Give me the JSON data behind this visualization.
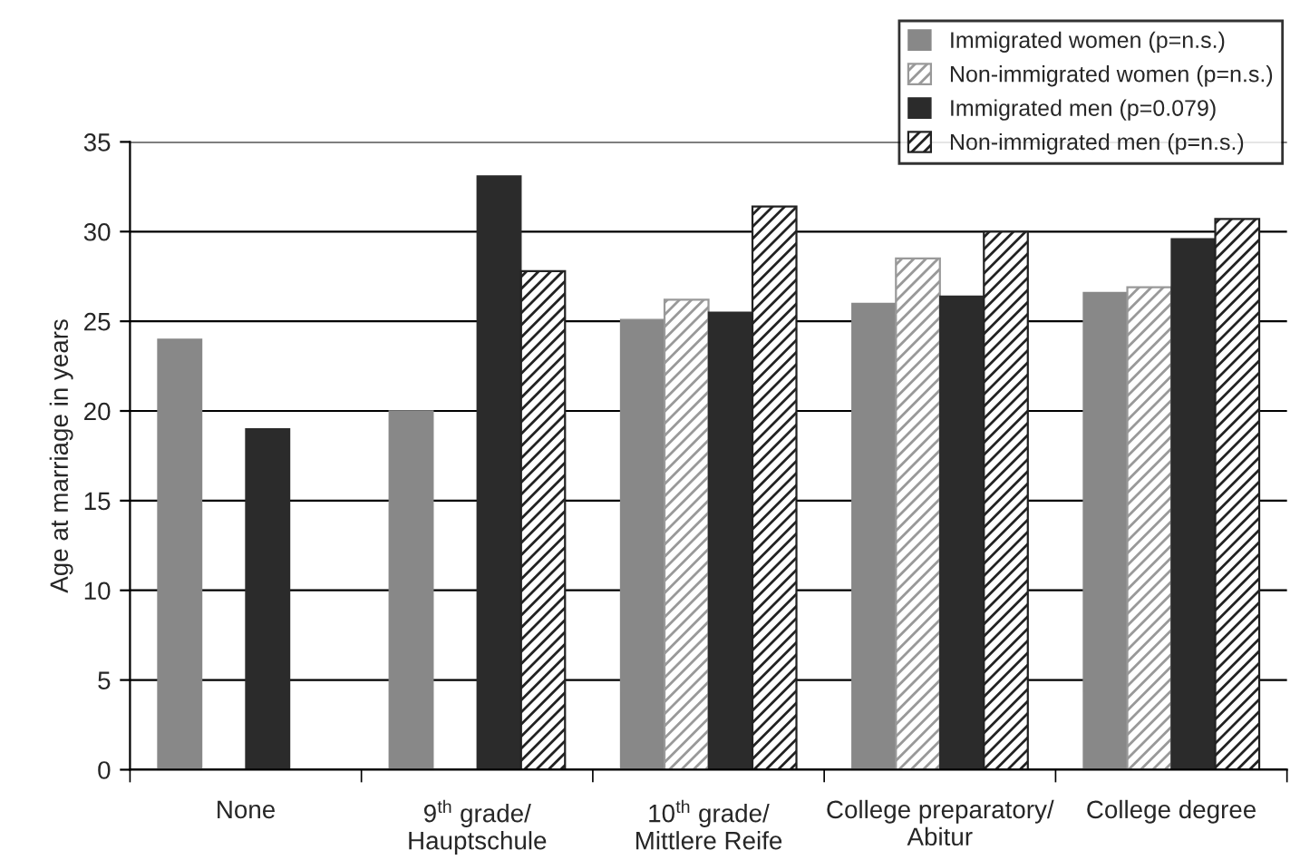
{
  "chart_data": {
    "type": "bar",
    "ylabel": "Age at marriage in years",
    "categories": [
      "None",
      "9$^{th}$ grade/\nHauptschule",
      "10$^{th}$ grade/\nMittlere Reife",
      "College preparatory/\nAbitur",
      "College degree"
    ],
    "series": [
      {
        "name": "Immigrated women (p=n.s.)",
        "color": "#888888",
        "values": [
          24.0,
          20.0,
          25.1,
          26.0,
          26.6
        ]
      },
      {
        "name": "Non-immigrated women (p=n.s.)",
        "color": "#999999",
        "values": [
          null,
          null,
          26.2,
          28.5,
          26.9
        ]
      },
      {
        "name": "Immigrated men (p=0.079)",
        "color": "#2b2b2b",
        "values": [
          19.0,
          33.1,
          25.5,
          26.4,
          29.6
        ]
      },
      {
        "name": "Non-immigrated men (p=n.s.)",
        "color": "#222222",
        "values": [
          null,
          27.8,
          31.4,
          30.0,
          30.7
        ]
      }
    ],
    "ylim": [
      0,
      35
    ],
    "yticks": [
      0,
      5,
      10,
      15,
      20,
      25,
      30,
      35
    ],
    "grid": "y",
    "legend": "top right"
  }
}
